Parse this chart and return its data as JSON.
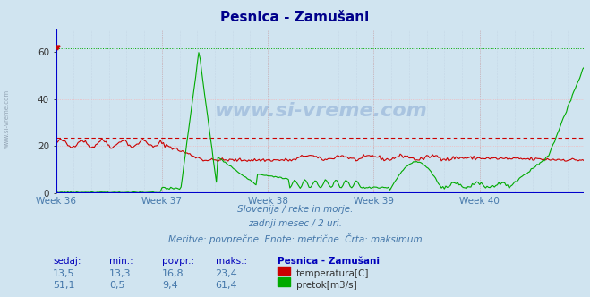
{
  "title": "Pesnica - Zamušani",
  "title_color": "#00008b",
  "bg_color": "#d0e4f0",
  "ylim": [
    0,
    70
  ],
  "yticks": [
    0,
    20,
    40,
    60
  ],
  "xweeks": [
    "Week 36",
    "Week 37",
    "Week 38",
    "Week 39",
    "Week 40"
  ],
  "xlabel_color": "#4477aa",
  "temp_color": "#cc0000",
  "flow_color": "#00aa00",
  "max_temp": 23.4,
  "max_flow": 61.4,
  "subtitle1": "Slovenija / reke in morje.",
  "subtitle2": "zadnji mesec / 2 uri.",
  "subtitle3": "Meritve: povprečne  Enote: metrične  Črta: maksimum",
  "subtitle_color": "#4477aa",
  "table_header_color": "#0000bb",
  "table_data_color": "#4477aa",
  "sedaj_label": "sedaj:",
  "min_label": "min.:",
  "povpr_label": "povpr.:",
  "maks_label": "maks.:",
  "station_label": "Pesnica - Zamušani",
  "temp_row": [
    "13,5",
    "13,3",
    "16,8",
    "23,4"
  ],
  "flow_row": [
    "51,1",
    "0,5",
    "9,4",
    "61,4"
  ],
  "temp_legend": "temperatura[C]",
  "flow_legend": "pretok[m3/s]",
  "n_points": 360,
  "week_x_positions": [
    0,
    72,
    144,
    216,
    288,
    354
  ],
  "watermark_color": "#2255aa",
  "side_watermark": "www.si-vreme.com",
  "center_watermark": "www.si-vreme.com"
}
